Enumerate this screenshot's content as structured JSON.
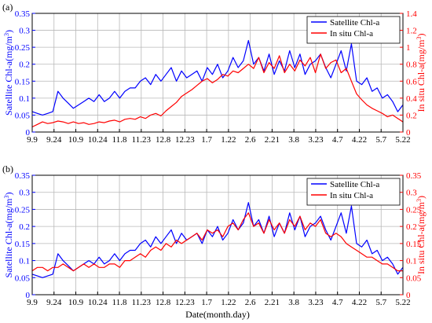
{
  "figure": {
    "xlabel": "Date(month.day)"
  },
  "chart_data": [
    {
      "type": "line",
      "panel_label": "(a)",
      "xlabel": "",
      "ylabel_left": "Satellite Chl-a(mg/m",
      "ylabel_left_sup": "3",
      "ylabel_left_tail": ")",
      "ylabel_right": "In situ Chl-a(mg/m",
      "ylabel_right_sup": "3",
      "ylabel_right_tail": ")",
      "left_color": "#0000ff",
      "right_color": "#ff0000",
      "xlim": [
        0,
        36
      ],
      "ylim_left": [
        0,
        0.35
      ],
      "ylim_right": [
        0,
        1.4
      ],
      "grid": true,
      "legend_position": "top-right",
      "x_tick_labels": [
        "9.9",
        "9.24",
        "10.9",
        "10.24",
        "11.8",
        "11.23",
        "12.8",
        "12.23",
        "1.7",
        "1.22",
        "2.6",
        "2.21",
        "3.8",
        "3.23",
        "4.7",
        "4.22",
        "5.7",
        "5.22"
      ],
      "y_left_ticks": [
        "0",
        "0.05",
        "0.1",
        "0.15",
        "0.2",
        "0.25",
        "0.3",
        "0.35"
      ],
      "y_right_ticks": [
        "0",
        "0.2",
        "0.4",
        "0.6",
        "0.8",
        "1",
        "1.2",
        "1.4"
      ],
      "series": [
        {
          "name": "Satellite Chl-a",
          "axis": "left",
          "color": "#0000ff",
          "x": [
            0,
            0.5,
            1,
            1.5,
            2,
            2.5,
            3,
            3.5,
            4,
            4.5,
            5,
            5.5,
            6,
            6.5,
            7,
            7.5,
            8,
            8.5,
            9,
            9.5,
            10,
            10.5,
            11,
            11.5,
            12,
            12.5,
            13,
            13.5,
            14,
            14.5,
            15,
            15.5,
            16,
            16.5,
            17,
            17.5,
            18,
            18.5,
            19,
            19.5,
            20,
            20.5,
            21,
            21.5,
            22,
            22.5,
            23,
            23.5,
            24,
            24.5,
            25,
            25.5,
            26,
            26.5,
            27,
            27.5,
            28,
            28.5,
            29,
            29.5,
            30,
            30.5,
            31,
            31.5,
            32,
            32.5,
            33,
            33.5,
            34,
            34.5,
            35,
            35.5,
            36
          ],
          "values": [
            0.06,
            0.055,
            0.05,
            0.055,
            0.06,
            0.12,
            0.1,
            0.085,
            0.07,
            0.08,
            0.09,
            0.1,
            0.09,
            0.11,
            0.09,
            0.1,
            0.12,
            0.1,
            0.12,
            0.13,
            0.13,
            0.15,
            0.16,
            0.14,
            0.17,
            0.15,
            0.17,
            0.19,
            0.15,
            0.18,
            0.16,
            0.17,
            0.18,
            0.15,
            0.19,
            0.17,
            0.2,
            0.16,
            0.18,
            0.22,
            0.19,
            0.21,
            0.27,
            0.2,
            0.22,
            0.18,
            0.23,
            0.17,
            0.21,
            0.18,
            0.24,
            0.19,
            0.23,
            0.17,
            0.2,
            0.21,
            0.23,
            0.19,
            0.16,
            0.2,
            0.24,
            0.18,
            0.26,
            0.15,
            0.14,
            0.16,
            0.12,
            0.13,
            0.1,
            0.11,
            0.09,
            0.06,
            0.08
          ]
        },
        {
          "name": "In situ Chl-a",
          "axis": "right",
          "color": "#ff0000",
          "x": [
            0,
            0.5,
            1,
            1.5,
            2,
            2.5,
            3,
            3.5,
            4,
            4.5,
            5,
            5.5,
            6,
            6.5,
            7,
            7.5,
            8,
            8.5,
            9,
            9.5,
            10,
            10.5,
            11,
            11.5,
            12,
            12.5,
            13,
            13.5,
            14,
            14.5,
            15,
            15.5,
            16,
            16.5,
            17,
            17.5,
            18,
            18.5,
            19,
            19.5,
            20,
            20.5,
            21,
            21.5,
            22,
            22.5,
            23,
            23.5,
            24,
            24.5,
            25,
            25.5,
            26,
            26.5,
            27,
            27.5,
            28,
            28.5,
            29,
            29.5,
            30,
            30.5,
            31,
            31.5,
            32,
            32.5,
            33,
            33.5,
            34,
            34.5,
            35,
            35.5,
            36
          ],
          "values": [
            0.06,
            0.09,
            0.12,
            0.1,
            0.11,
            0.13,
            0.12,
            0.1,
            0.12,
            0.1,
            0.11,
            0.09,
            0.1,
            0.12,
            0.11,
            0.13,
            0.14,
            0.12,
            0.15,
            0.16,
            0.15,
            0.18,
            0.16,
            0.2,
            0.22,
            0.19,
            0.25,
            0.3,
            0.35,
            0.42,
            0.46,
            0.5,
            0.55,
            0.6,
            0.63,
            0.58,
            0.62,
            0.68,
            0.66,
            0.72,
            0.7,
            0.75,
            0.8,
            0.75,
            0.88,
            0.7,
            0.82,
            0.75,
            0.9,
            0.7,
            0.8,
            0.72,
            0.85,
            0.78,
            0.88,
            0.7,
            0.92,
            0.75,
            0.82,
            0.85,
            0.7,
            0.75,
            0.6,
            0.45,
            0.38,
            0.32,
            0.28,
            0.25,
            0.22,
            0.18,
            0.2,
            0.16,
            0.12
          ]
        }
      ]
    },
    {
      "type": "line",
      "panel_label": "(b)",
      "xlabel": "Date(month.day)",
      "ylabel_left": "Satellite Chl-a(mg/m",
      "ylabel_left_sup": "3",
      "ylabel_left_tail": ")",
      "ylabel_right": "In situ Chl-a(mg/m",
      "ylabel_right_sup": "3",
      "ylabel_right_tail": ")",
      "left_color": "#0000ff",
      "right_color": "#ff0000",
      "xlim": [
        0,
        36
      ],
      "ylim_left": [
        0,
        0.35
      ],
      "ylim_right": [
        0,
        0.35
      ],
      "grid": true,
      "legend_position": "top-right",
      "x_tick_labels": [
        "9.9",
        "9.24",
        "10.9",
        "10.24",
        "11.8",
        "11.23",
        "12.8",
        "12.23",
        "1.7",
        "1.22",
        "2.6",
        "2.21",
        "3.8",
        "3.23",
        "4.7",
        "4.22",
        "5.7",
        "5.22"
      ],
      "y_left_ticks": [
        "0",
        "0.05",
        "0.1",
        "0.15",
        "0.2",
        "0.25",
        "0.3",
        "0.35"
      ],
      "y_right_ticks": [
        "0",
        "0.05",
        "0.1",
        "0.15",
        "0.2",
        "0.25",
        "0.3",
        "0.35"
      ],
      "series": [
        {
          "name": "Satellite Chl-a",
          "axis": "left",
          "color": "#0000ff",
          "x": [
            0,
            0.5,
            1,
            1.5,
            2,
            2.5,
            3,
            3.5,
            4,
            4.5,
            5,
            5.5,
            6,
            6.5,
            7,
            7.5,
            8,
            8.5,
            9,
            9.5,
            10,
            10.5,
            11,
            11.5,
            12,
            12.5,
            13,
            13.5,
            14,
            14.5,
            15,
            15.5,
            16,
            16.5,
            17,
            17.5,
            18,
            18.5,
            19,
            19.5,
            20,
            20.5,
            21,
            21.5,
            22,
            22.5,
            23,
            23.5,
            24,
            24.5,
            25,
            25.5,
            26,
            26.5,
            27,
            27.5,
            28,
            28.5,
            29,
            29.5,
            30,
            30.5,
            31,
            31.5,
            32,
            32.5,
            33,
            33.5,
            34,
            34.5,
            35,
            35.5,
            36
          ],
          "values": [
            0.06,
            0.055,
            0.05,
            0.055,
            0.06,
            0.12,
            0.1,
            0.085,
            0.07,
            0.08,
            0.09,
            0.1,
            0.09,
            0.11,
            0.09,
            0.1,
            0.12,
            0.1,
            0.12,
            0.13,
            0.13,
            0.15,
            0.16,
            0.14,
            0.17,
            0.15,
            0.17,
            0.19,
            0.15,
            0.18,
            0.16,
            0.17,
            0.18,
            0.15,
            0.19,
            0.17,
            0.2,
            0.16,
            0.18,
            0.22,
            0.19,
            0.21,
            0.27,
            0.2,
            0.22,
            0.18,
            0.23,
            0.17,
            0.21,
            0.18,
            0.24,
            0.19,
            0.23,
            0.17,
            0.2,
            0.21,
            0.23,
            0.19,
            0.16,
            0.2,
            0.24,
            0.18,
            0.26,
            0.15,
            0.14,
            0.16,
            0.12,
            0.13,
            0.1,
            0.11,
            0.09,
            0.06,
            0.08
          ]
        },
        {
          "name": "In situ Chl-a",
          "axis": "right",
          "color": "#ff0000",
          "x": [
            0,
            0.5,
            1,
            1.5,
            2,
            2.5,
            3,
            3.5,
            4,
            4.5,
            5,
            5.5,
            6,
            6.5,
            7,
            7.5,
            8,
            8.5,
            9,
            9.5,
            10,
            10.5,
            11,
            11.5,
            12,
            12.5,
            13,
            13.5,
            14,
            14.5,
            15,
            15.5,
            16,
            16.5,
            17,
            17.5,
            18,
            18.5,
            19,
            19.5,
            20,
            20.5,
            21,
            21.5,
            22,
            22.5,
            23,
            23.5,
            24,
            24.5,
            25,
            25.5,
            26,
            26.5,
            27,
            27.5,
            28,
            28.5,
            29,
            29.5,
            30,
            30.5,
            31,
            31.5,
            32,
            32.5,
            33,
            33.5,
            34,
            34.5,
            35,
            35.5,
            36
          ],
          "values": [
            0.07,
            0.08,
            0.08,
            0.07,
            0.08,
            0.08,
            0.09,
            0.08,
            0.07,
            0.08,
            0.09,
            0.08,
            0.09,
            0.08,
            0.08,
            0.09,
            0.09,
            0.08,
            0.1,
            0.1,
            0.11,
            0.12,
            0.11,
            0.13,
            0.14,
            0.13,
            0.15,
            0.14,
            0.16,
            0.15,
            0.16,
            0.17,
            0.18,
            0.16,
            0.19,
            0.18,
            0.19,
            0.17,
            0.2,
            0.21,
            0.19,
            0.22,
            0.24,
            0.2,
            0.21,
            0.18,
            0.22,
            0.19,
            0.21,
            0.18,
            0.22,
            0.2,
            0.23,
            0.19,
            0.21,
            0.2,
            0.22,
            0.18,
            0.17,
            0.18,
            0.17,
            0.15,
            0.14,
            0.13,
            0.12,
            0.11,
            0.11,
            0.1,
            0.09,
            0.09,
            0.08,
            0.07,
            0.07
          ]
        }
      ]
    }
  ]
}
